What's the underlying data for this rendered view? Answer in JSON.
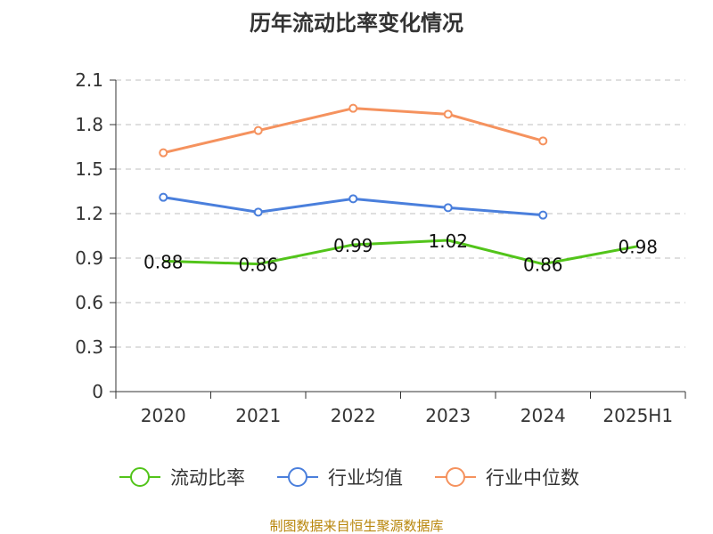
{
  "title": "历年流动比率变化情况",
  "source": "制图数据来自恒生聚源数据库",
  "chart_data": {
    "type": "line",
    "categories": [
      "2020",
      "2021",
      "2022",
      "2023",
      "2024",
      "2025H1"
    ],
    "ylim": [
      0,
      2.1
    ],
    "yticks": [
      "0",
      "0.3",
      "0.6",
      "0.9",
      "1.2",
      "1.5",
      "1.8",
      "2.1"
    ],
    "grid": true,
    "legend_position": "bottom",
    "series": [
      {
        "name": "流动比率",
        "color": "#52c41a",
        "values": [
          0.88,
          0.86,
          0.99,
          1.02,
          0.86,
          0.98
        ],
        "labels": [
          "0.88",
          "0.86",
          "0.99",
          "1.02",
          "0.86",
          "0.98"
        ],
        "markers": false
      },
      {
        "name": "行业均值",
        "color": "#4a7fdc",
        "values": [
          1.31,
          1.21,
          1.3,
          1.24,
          1.19,
          null
        ],
        "markers": true
      },
      {
        "name": "行业中位数",
        "color": "#f5925e",
        "values": [
          1.61,
          1.76,
          1.91,
          1.87,
          1.69,
          null
        ],
        "markers": true
      }
    ]
  }
}
